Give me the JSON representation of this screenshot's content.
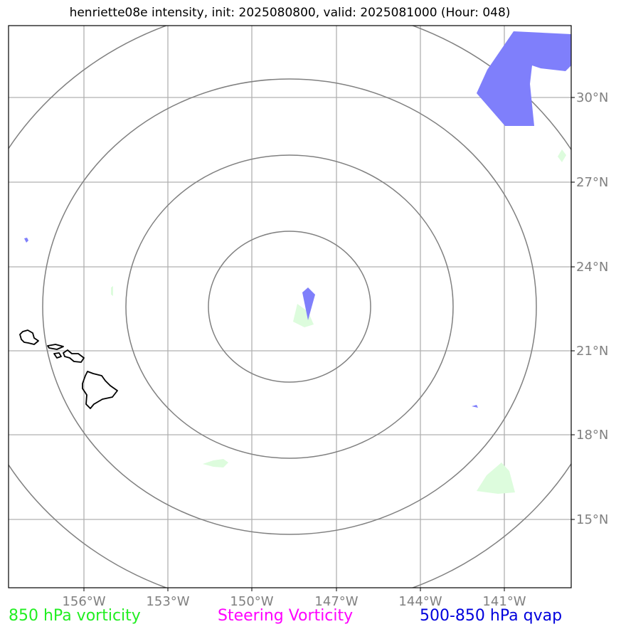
{
  "title": "henriette08e intensity, init: 2025080800, valid: 2025081000 (Hour: 048)",
  "map": {
    "lat_ticks": [
      {
        "value": 30,
        "label": "30°N"
      },
      {
        "value": 27,
        "label": "27°N"
      },
      {
        "value": 24,
        "label": "24°N"
      },
      {
        "value": 21,
        "label": "21°N"
      },
      {
        "value": 18,
        "label": "18°N"
      },
      {
        "value": 15,
        "label": "15°N"
      }
    ],
    "lon_ticks": [
      {
        "value": -156,
        "label": "156°W"
      },
      {
        "value": -153,
        "label": "153°W"
      },
      {
        "value": -150,
        "label": "150°W"
      },
      {
        "value": -147,
        "label": "147°W"
      },
      {
        "value": -144,
        "label": "144°W"
      },
      {
        "value": -141,
        "label": "141°W"
      }
    ],
    "grid": true,
    "range_rings": 4,
    "colors": {
      "gridline": "#b0b0b0",
      "ring": "#808080",
      "coastline": "#000000",
      "vorticity_fill": "#ddfcdd",
      "qvap_fill": "#7f7ffb"
    }
  },
  "legend": [
    {
      "label": "850 hPa vorticity",
      "color": "#22ee22"
    },
    {
      "label": "Steering Vorticity",
      "color": "#ff00ff"
    },
    {
      "label": "500-850 hPa qvap",
      "color": "#0000dd"
    }
  ]
}
